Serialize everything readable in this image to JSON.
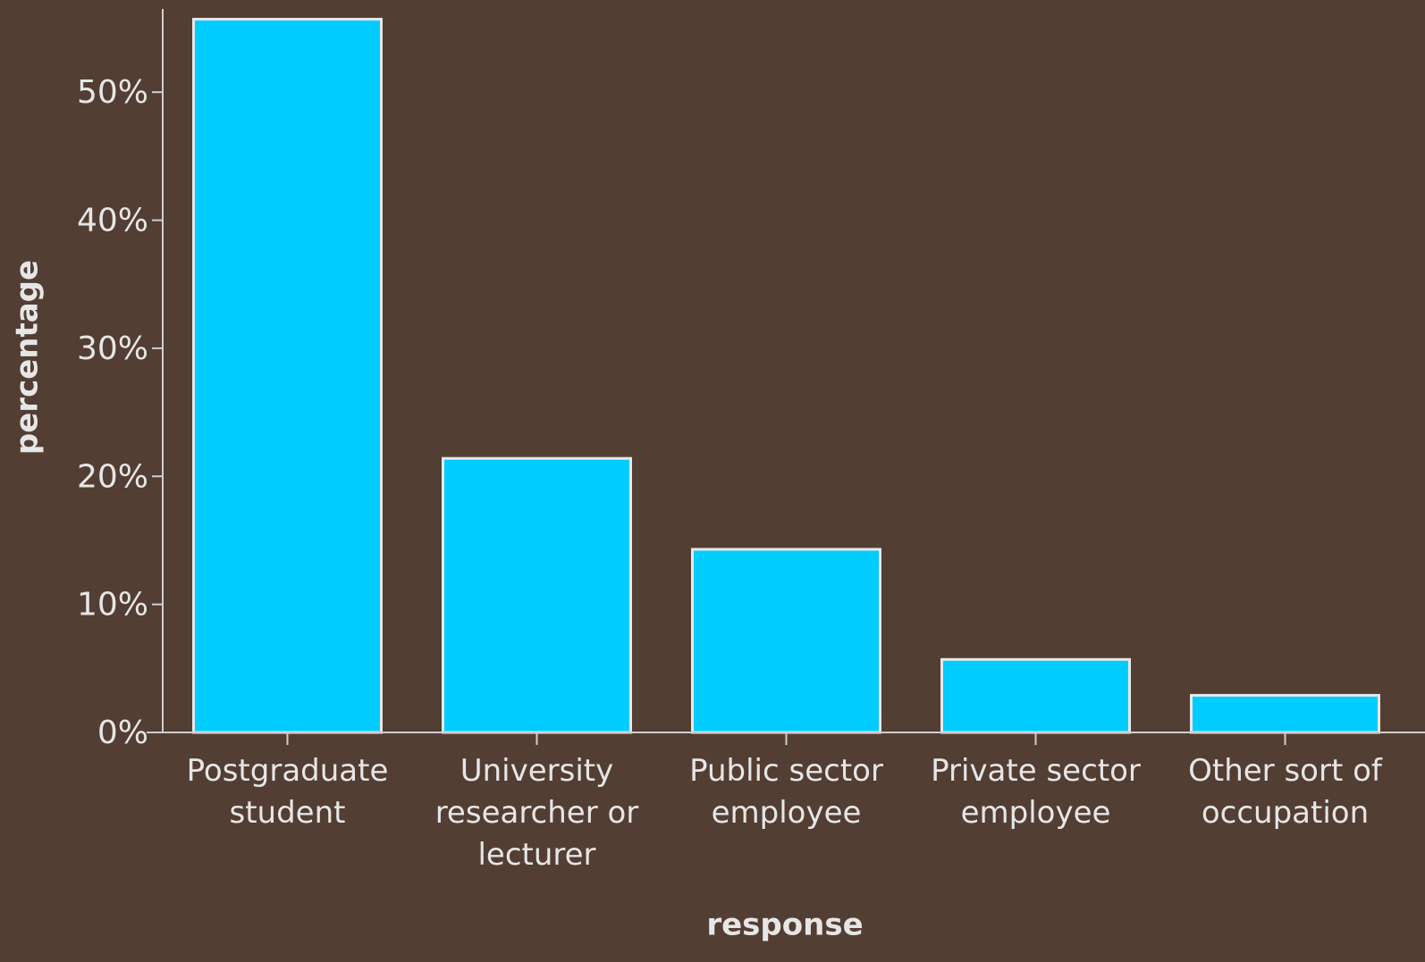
{
  "chart_data": {
    "type": "bar",
    "xlabel": "response",
    "ylabel": "percentage",
    "categories": [
      "Postgraduate student",
      "University researcher or lecturer",
      "Public sector employee",
      "Private sector employee",
      "Other sort of occupation"
    ],
    "values": [
      55.7,
      21.4,
      14.3,
      5.7,
      2.9
    ],
    "color": "#00ccff",
    "ylim": [
      0,
      56.5
    ],
    "yticks": [
      {
        "value": 0,
        "label": "0%"
      },
      {
        "value": 10,
        "label": "10%"
      },
      {
        "value": 20,
        "label": "20%"
      },
      {
        "value": 30,
        "label": "30%"
      },
      {
        "value": 40,
        "label": "40%"
      },
      {
        "value": 50,
        "label": "50%"
      }
    ],
    "grid": false
  }
}
